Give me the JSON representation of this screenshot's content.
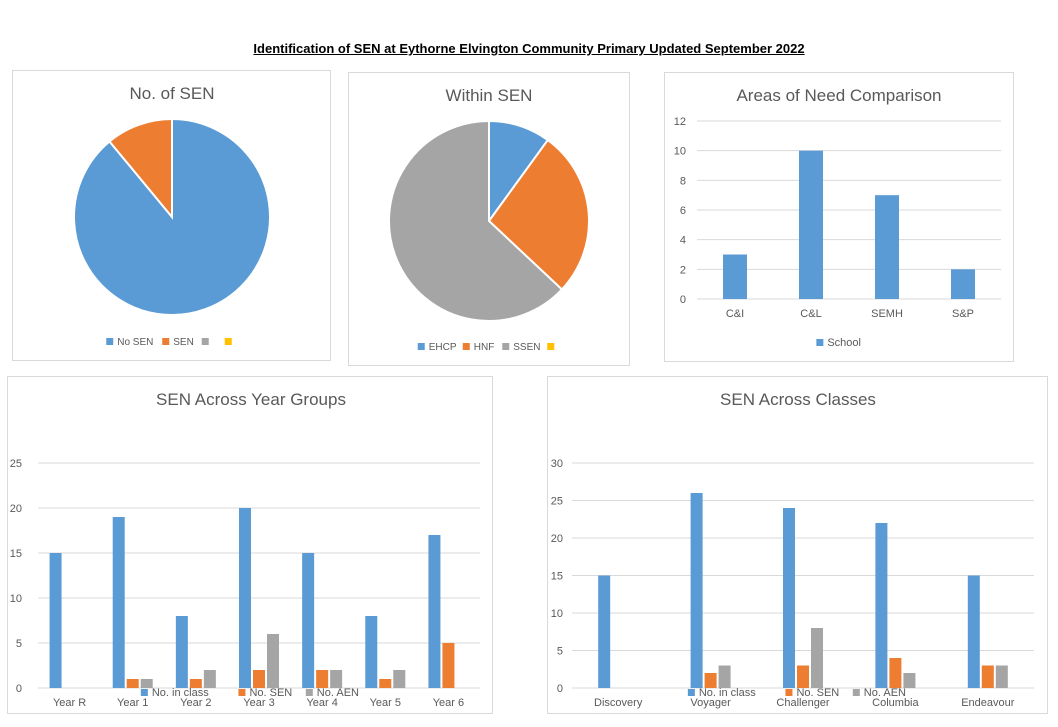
{
  "page": {
    "title": "Identification of SEN at Eythorne Elvington Community Primary Updated September 2022"
  },
  "colors": {
    "blue": "#5b9bd5",
    "orange": "#ed7d31",
    "gray": "#a5a5a5",
    "yellow": "#ffc000",
    "grid": "#d9d9d9"
  },
  "chart_data": [
    {
      "id": "no-of-sen",
      "type": "pie",
      "title": "No. of SEN",
      "labels": [
        "No SEN",
        "SEN",
        "",
        ""
      ],
      "values": [
        89,
        11,
        0,
        0
      ],
      "colors": [
        "#5b9bd5",
        "#ed7d31",
        "#a5a5a5",
        "#ffc000"
      ],
      "legend": "bottom"
    },
    {
      "id": "within-sen",
      "type": "pie",
      "title": "Within SEN",
      "labels": [
        "EHCP",
        "HNF",
        "SSEN",
        ""
      ],
      "values": [
        10,
        27,
        63,
        0
      ],
      "colors": [
        "#5b9bd5",
        "#ed7d31",
        "#a5a5a5",
        "#ffc000"
      ],
      "legend": "bottom"
    },
    {
      "id": "areas-of-need",
      "type": "bar",
      "title": "Areas of Need Comparison",
      "categories": [
        "C&I",
        "C&L",
        "SEMH",
        "S&P"
      ],
      "series": [
        {
          "name": "School",
          "values": [
            3,
            10,
            7,
            2
          ],
          "color": "#5b9bd5"
        }
      ],
      "ylim": [
        0,
        12
      ],
      "yticks": [
        0,
        2,
        4,
        6,
        8,
        10,
        12
      ],
      "grid": true,
      "legend": "bottom"
    },
    {
      "id": "year-groups",
      "type": "bar",
      "title": "SEN Across Year Groups",
      "categories": [
        "Year R",
        "Year 1",
        "Year 2",
        "Year 3",
        "Year 4",
        "Year 5",
        "Year 6"
      ],
      "series": [
        {
          "name": "No. in class",
          "values": [
            15,
            19,
            8,
            20,
            15,
            8,
            17
          ],
          "color": "#5b9bd5"
        },
        {
          "name": "No. SEN",
          "values": [
            0,
            1,
            1,
            2,
            2,
            1,
            5
          ],
          "color": "#ed7d31"
        },
        {
          "name": "No. AEN",
          "values": [
            0,
            1,
            2,
            6,
            2,
            2,
            0
          ],
          "color": "#a5a5a5"
        }
      ],
      "ylim": [
        0,
        25
      ],
      "yticks": [
        0,
        5,
        10,
        15,
        20,
        25
      ],
      "grid": true,
      "legend": "bottom"
    },
    {
      "id": "classes",
      "type": "bar",
      "title": "SEN Across Classes",
      "categories": [
        "Discovery",
        "Voyager",
        "Challenger",
        "Columbia",
        "Endeavour"
      ],
      "series": [
        {
          "name": "No. in class",
          "values": [
            15,
            26,
            24,
            22,
            15
          ],
          "color": "#5b9bd5"
        },
        {
          "name": "No. SEN",
          "values": [
            0,
            2,
            3,
            4,
            3
          ],
          "color": "#ed7d31"
        },
        {
          "name": "No. AEN",
          "values": [
            0,
            3,
            8,
            2,
            3
          ],
          "color": "#a5a5a5"
        }
      ],
      "ylim": [
        0,
        30
      ],
      "yticks": [
        0,
        5,
        10,
        15,
        20,
        25,
        30
      ],
      "grid": true,
      "legend": "bottom"
    }
  ]
}
